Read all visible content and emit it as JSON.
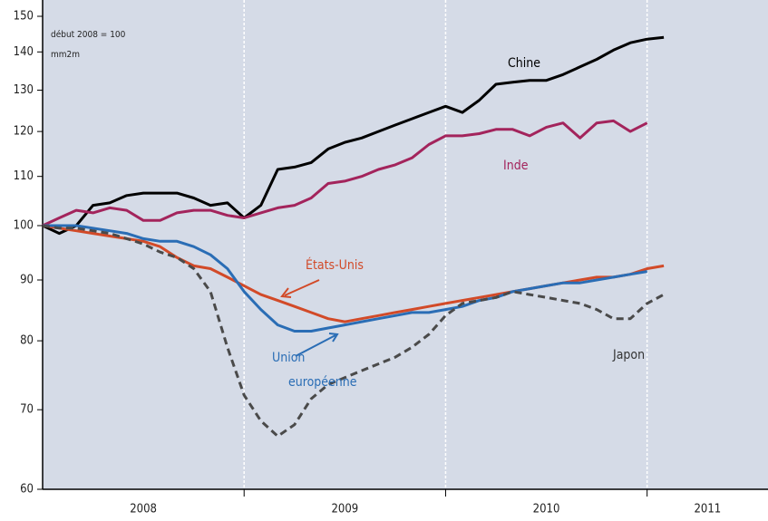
{
  "chart_data": {
    "type": "line",
    "log_y": true,
    "note_lines": [
      "début 2008 = 100",
      "mm2m"
    ],
    "x": [
      2008,
      2008.083,
      2008.167,
      2008.25,
      2008.333,
      2008.417,
      2008.5,
      2008.583,
      2008.667,
      2008.75,
      2008.833,
      2008.917,
      2009,
      2009.083,
      2009.167,
      2009.25,
      2009.333,
      2009.417,
      2009.5,
      2009.583,
      2009.667,
      2009.75,
      2009.833,
      2009.917,
      2010,
      2010.083,
      2010.167,
      2010.25,
      2010.333,
      2010.417,
      2010.5,
      2010.583,
      2010.667,
      2010.75,
      2010.833,
      2010.917,
      2011,
      2011.083
    ],
    "xlim": [
      2008,
      2011.6
    ],
    "xticks": [
      {
        "value": 2008.5,
        "label": "2008"
      },
      {
        "value": 2009.5,
        "label": "2009"
      },
      {
        "value": 2010.5,
        "label": "2010"
      },
      {
        "value": 2011.3,
        "label": "2011"
      }
    ],
    "xgrid": [
      2009,
      2010,
      2011
    ],
    "ylim": [
      60,
      150
    ],
    "yticks": [
      60,
      70,
      80,
      90,
      100,
      110,
      120,
      130,
      140,
      150
    ],
    "series": [
      {
        "name": "Chine",
        "color": "#000000",
        "dash": false,
        "values": [
          100,
          98.5,
          100,
          104,
          104.5,
          106,
          106.5,
          106.5,
          106.5,
          105.5,
          104,
          104.5,
          101.5,
          104,
          111.5,
          112,
          113,
          116,
          117.5,
          118.5,
          120,
          121.5,
          123,
          124.5,
          126,
          124.5,
          127.5,
          131.5,
          132,
          132.5,
          132.5,
          134,
          136,
          138,
          140.5,
          142.5,
          143.5,
          144
        ]
      },
      {
        "name": "Inde",
        "color": "#a3245c",
        "dash": false,
        "values": [
          100,
          101.5,
          103,
          102.5,
          103.5,
          103,
          101,
          101,
          102.5,
          103,
          103,
          102,
          101.5,
          102.5,
          103.5,
          104,
          105.5,
          108.5,
          109,
          110,
          111.5,
          112.5,
          114,
          117,
          119,
          119,
          119.5,
          120.5,
          120.5,
          119,
          121,
          122,
          118.5,
          122,
          122.5,
          120,
          122,
          null
        ]
      },
      {
        "name": "États-Unis",
        "color": "#d24a28",
        "dash": false,
        "values": [
          100,
          99.5,
          99,
          98.5,
          98,
          97.5,
          97,
          96,
          94,
          92.5,
          92,
          90.5,
          89,
          87.5,
          86.5,
          85.5,
          84.5,
          83.5,
          83,
          83.5,
          84,
          84.5,
          85,
          85.5,
          86,
          86.5,
          87,
          87.5,
          88,
          88.5,
          89,
          89.5,
          90,
          90.5,
          90.5,
          91,
          92,
          92.5
        ]
      },
      {
        "name": "Union européenne",
        "color": "#2a6db5",
        "dash": false,
        "values": [
          100,
          100,
          100,
          99.5,
          99,
          98.5,
          97.5,
          97,
          97,
          96,
          94.5,
          92,
          88,
          85,
          82.5,
          81.5,
          81.5,
          82,
          82.5,
          83,
          83.5,
          84,
          84.5,
          84.5,
          85,
          85.5,
          86.5,
          87,
          88,
          88.5,
          89,
          89.5,
          89.5,
          90,
          90.5,
          91,
          91.5,
          null
        ]
      },
      {
        "name": "Japon",
        "color": "#4a4a4a",
        "dash": true,
        "values": [
          100,
          99.5,
          99.5,
          99,
          98.5,
          97.5,
          96.5,
          95,
          94,
          92,
          88,
          79,
          72,
          68.5,
          66.5,
          68,
          71.5,
          73.5,
          74.5,
          75.5,
          76.5,
          77.5,
          79,
          81,
          84,
          86,
          86.5,
          87,
          88,
          87.5,
          87,
          86.5,
          86,
          85,
          83.5,
          83.5,
          86,
          87.5
        ]
      }
    ],
    "annotations": [
      "Chine",
      "Inde",
      "États-Unis",
      "Union",
      "européenne",
      "Japon"
    ]
  }
}
